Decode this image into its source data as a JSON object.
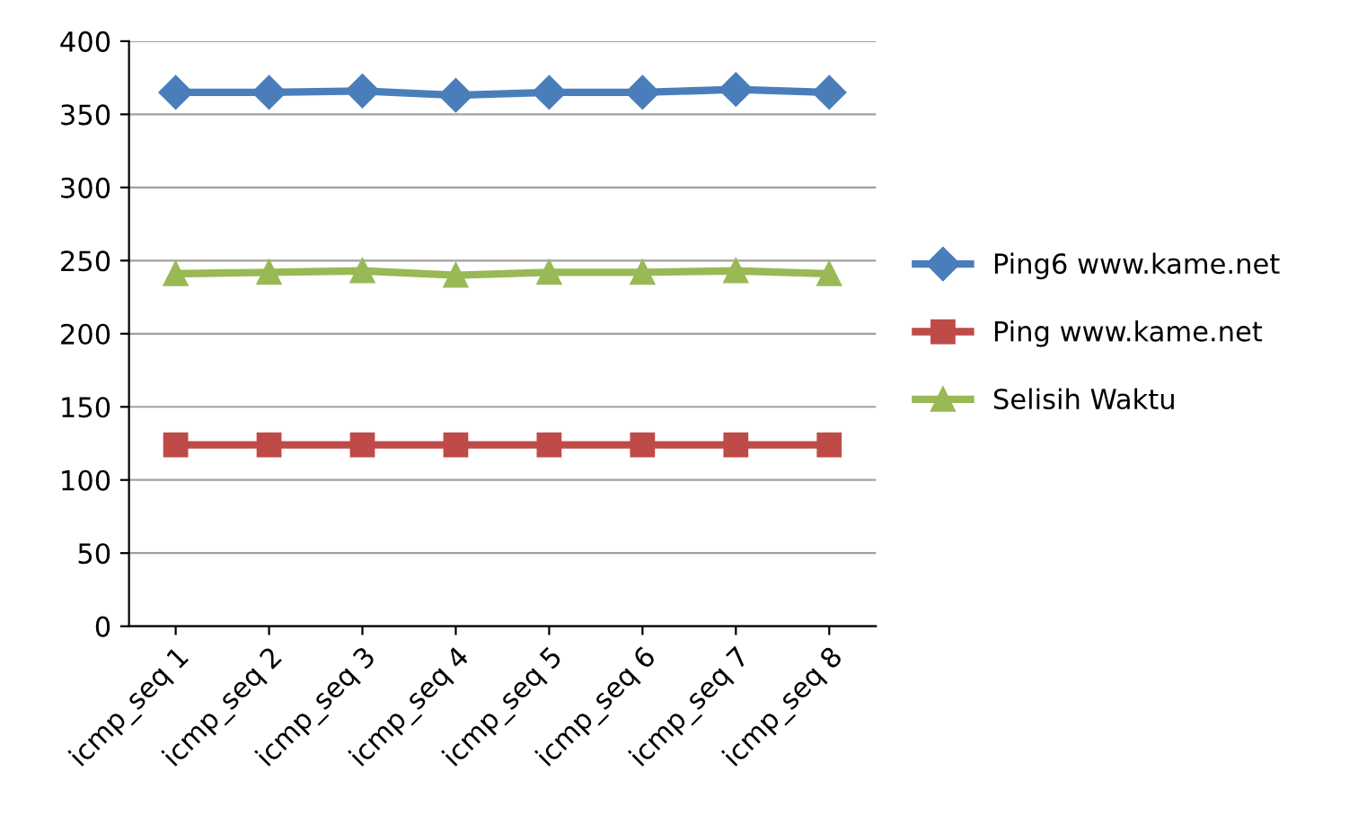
{
  "chart_data": {
    "type": "line",
    "categories": [
      "icmp_seq 1",
      "icmp_seq 2",
      "icmp_seq 3",
      "icmp_seq 4",
      "icmp_seq 5",
      "icmp_seq 6",
      "icmp_seq 7",
      "icmp_seq 8"
    ],
    "series": [
      {
        "name": "Ping6 www.kame.net",
        "color": "#4a7ebb",
        "marker": "diamond",
        "values": [
          365,
          365,
          366,
          363,
          365,
          365,
          367,
          365
        ]
      },
      {
        "name": "Ping www.kame.net",
        "color": "#be4b48",
        "marker": "square",
        "values": [
          124,
          124,
          124,
          124,
          124,
          124,
          124,
          124
        ]
      },
      {
        "name": "Selisih Waktu",
        "color": "#98b954",
        "marker": "triangle",
        "values": [
          241,
          242,
          243,
          240,
          242,
          242,
          243,
          241
        ]
      }
    ],
    "ylim": [
      0,
      400
    ],
    "yticks": [
      0,
      50,
      100,
      150,
      200,
      250,
      300,
      350,
      400
    ],
    "grid": "y",
    "legend": "right"
  }
}
